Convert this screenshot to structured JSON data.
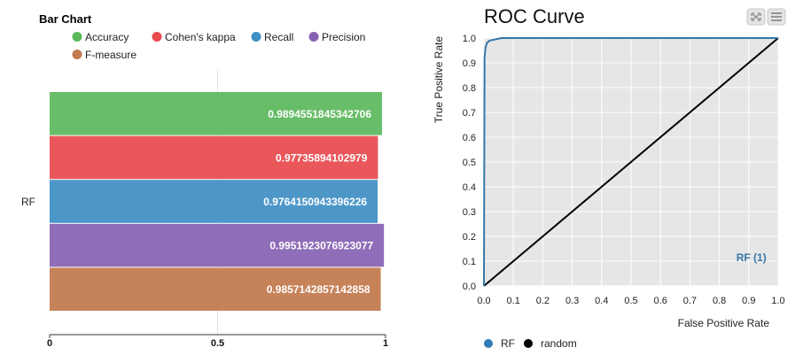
{
  "chart_data": [
    {
      "type": "bar",
      "orientation": "horizontal",
      "title": "Bar Chart",
      "categories": [
        "RF"
      ],
      "series": [
        {
          "name": "Accuracy",
          "color": "#5cb85c",
          "values": [
            0.9894551845342706
          ],
          "label": "0.9894551845342706"
        },
        {
          "name": "Cohen's kappa",
          "color": "#e84a4f",
          "values": [
            0.97735894102979
          ],
          "label": "0.97735894102979"
        },
        {
          "name": "Recall",
          "color": "#3f8fc4",
          "values": [
            0.9764150943396226
          ],
          "label": "0.9764150943396226"
        },
        {
          "name": "Precision",
          "color": "#8662b3",
          "values": [
            0.9951923076923077
          ],
          "label": "0.9951923076923077"
        },
        {
          "name": "F-measure",
          "color": "#c27a4e",
          "values": [
            0.9857142857142858
          ],
          "label": "0.9857142857142858"
        }
      ],
      "xlim": [
        0,
        1
      ],
      "xticks": [
        "0",
        "0.5",
        "1"
      ],
      "grid": true,
      "legend": "top"
    },
    {
      "type": "line",
      "title": "ROC Curve",
      "xlabel": "False Positive Rate",
      "ylabel": "True Positive Rate",
      "xlim": [
        0,
        1
      ],
      "ylim": [
        0,
        1
      ],
      "xticks": [
        "0.0",
        "0.1",
        "0.2",
        "0.3",
        "0.4",
        "0.5",
        "0.6",
        "0.7",
        "0.8",
        "0.9",
        "1.0"
      ],
      "yticks": [
        "0.0",
        "0.1",
        "0.2",
        "0.3",
        "0.4",
        "0.5",
        "0.6",
        "0.7",
        "0.8",
        "0.9",
        "1.0"
      ],
      "series": [
        {
          "name": "RF",
          "color": "#3577a8",
          "x": [
            0.0,
            0.002,
            0.005,
            0.01,
            0.02,
            0.04,
            0.06,
            0.1,
            0.2,
            0.4,
            0.6,
            0.8,
            1.0
          ],
          "y": [
            0.0,
            0.92,
            0.96,
            0.98,
            0.99,
            0.995,
            1.0,
            1.0,
            1.0,
            1.0,
            1.0,
            1.0,
            1.0
          ],
          "annotation": "RF (1)"
        },
        {
          "name": "random",
          "color": "#000000",
          "x": [
            0,
            1
          ],
          "y": [
            0,
            1
          ]
        }
      ],
      "grid": true,
      "legend": "bottom"
    }
  ]
}
